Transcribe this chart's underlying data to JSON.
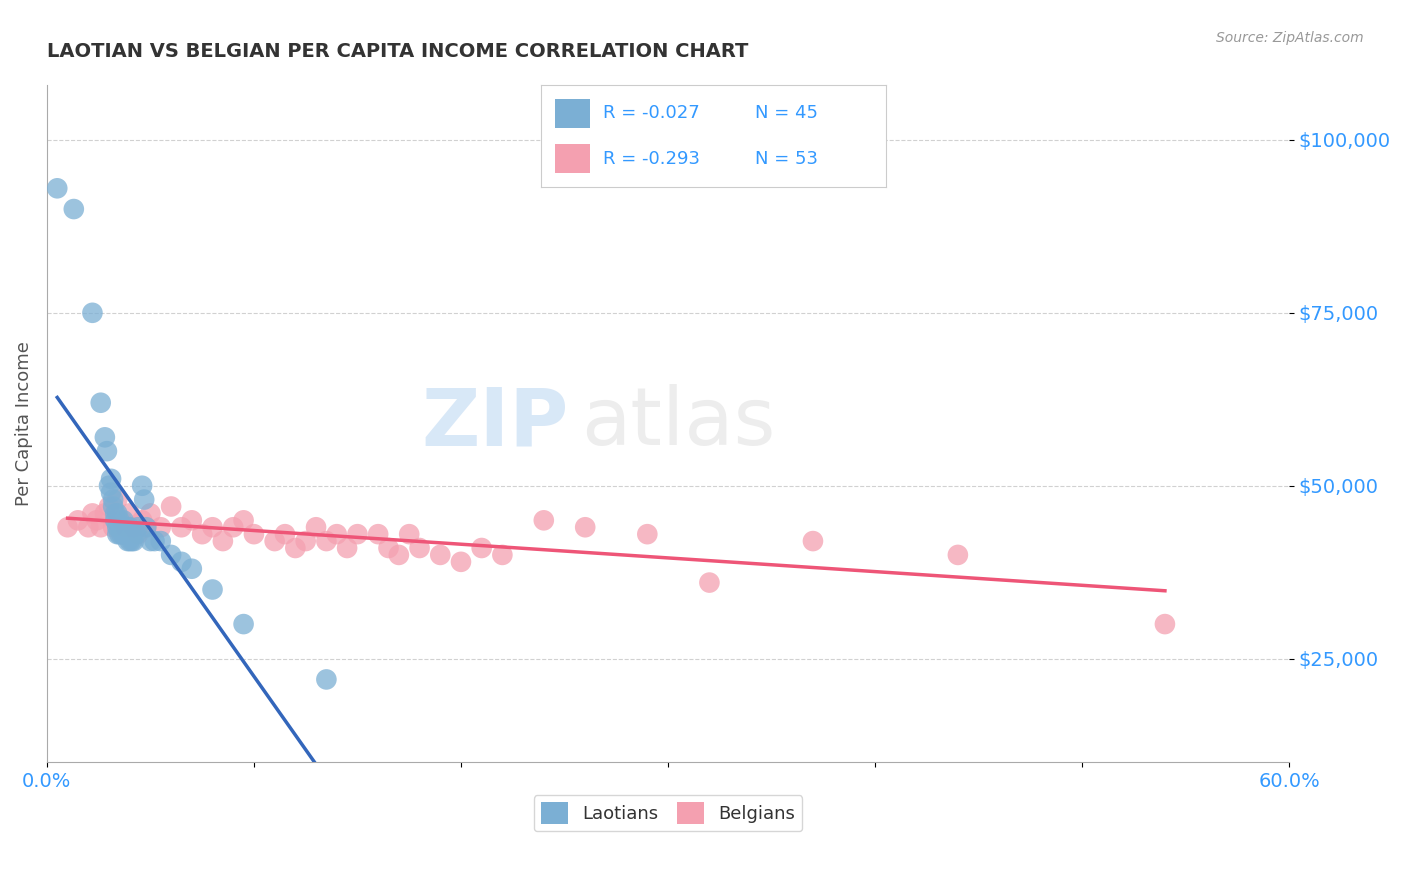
{
  "title": "LAOTIAN VS BELGIAN PER CAPITA INCOME CORRELATION CHART",
  "source": "Source: ZipAtlas.com",
  "ylabel": "Per Capita Income",
  "xlim": [
    0.0,
    0.6
  ],
  "ylim": [
    10000,
    108000
  ],
  "yticks": [
    25000,
    50000,
    75000,
    100000
  ],
  "ytick_labels": [
    "$25,000",
    "$50,000",
    "$75,000",
    "$100,000"
  ],
  "xtick_labels": [
    "0.0%",
    "",
    "",
    "",
    "",
    "",
    "60.0%"
  ],
  "xticks": [
    0.0,
    0.1,
    0.2,
    0.3,
    0.4,
    0.5,
    0.6
  ],
  "laotian_R": -0.027,
  "laotian_N": 45,
  "belgian_R": -0.293,
  "belgian_N": 53,
  "laotian_color": "#7BAFD4",
  "belgian_color": "#F4A0B0",
  "laotian_line_color": "#3366BB",
  "belgian_line_color": "#EE5577",
  "background_color": "#FFFFFF",
  "title_color": "#333333",
  "axis_label_color": "#555555",
  "tick_color": "#3399FF",
  "grid_color": "#CCCCCC",
  "watermark_ZIP": "ZIP",
  "watermark_atlas": "atlas",
  "laotian_x": [
    0.005,
    0.013,
    0.022,
    0.026,
    0.028,
    0.029,
    0.03,
    0.031,
    0.031,
    0.032,
    0.032,
    0.033,
    0.033,
    0.034,
    0.034,
    0.034,
    0.035,
    0.035,
    0.036,
    0.036,
    0.037,
    0.037,
    0.038,
    0.038,
    0.039,
    0.039,
    0.04,
    0.04,
    0.041,
    0.041,
    0.042,
    0.043,
    0.044,
    0.046,
    0.047,
    0.048,
    0.05,
    0.052,
    0.055,
    0.06,
    0.065,
    0.07,
    0.08,
    0.095,
    0.135
  ],
  "laotian_y": [
    93000,
    90000,
    75000,
    62000,
    57000,
    55000,
    50000,
    51000,
    49000,
    48000,
    47000,
    46000,
    45000,
    46000,
    44000,
    43000,
    45000,
    43000,
    44000,
    43000,
    45000,
    43000,
    44000,
    43000,
    44000,
    42000,
    44000,
    42000,
    43000,
    42000,
    42000,
    43000,
    44000,
    50000,
    48000,
    44000,
    42000,
    42000,
    42000,
    40000,
    39000,
    38000,
    35000,
    30000,
    22000
  ],
  "belgian_x": [
    0.01,
    0.015,
    0.02,
    0.022,
    0.024,
    0.026,
    0.028,
    0.03,
    0.032,
    0.034,
    0.036,
    0.038,
    0.04,
    0.042,
    0.044,
    0.046,
    0.048,
    0.05,
    0.055,
    0.06,
    0.065,
    0.07,
    0.075,
    0.08,
    0.085,
    0.09,
    0.095,
    0.1,
    0.11,
    0.115,
    0.12,
    0.125,
    0.13,
    0.135,
    0.14,
    0.145,
    0.15,
    0.16,
    0.165,
    0.17,
    0.175,
    0.18,
    0.19,
    0.2,
    0.21,
    0.22,
    0.24,
    0.26,
    0.29,
    0.32,
    0.37,
    0.44,
    0.54
  ],
  "belgian_y": [
    44000,
    45000,
    44000,
    46000,
    45000,
    44000,
    46000,
    47000,
    44000,
    48000,
    45000,
    44000,
    46000,
    44000,
    43000,
    45000,
    44000,
    46000,
    44000,
    47000,
    44000,
    45000,
    43000,
    44000,
    42000,
    44000,
    45000,
    43000,
    42000,
    43000,
    41000,
    42000,
    44000,
    42000,
    43000,
    41000,
    43000,
    43000,
    41000,
    40000,
    43000,
    41000,
    40000,
    39000,
    41000,
    40000,
    45000,
    44000,
    43000,
    36000,
    42000,
    40000,
    30000
  ]
}
